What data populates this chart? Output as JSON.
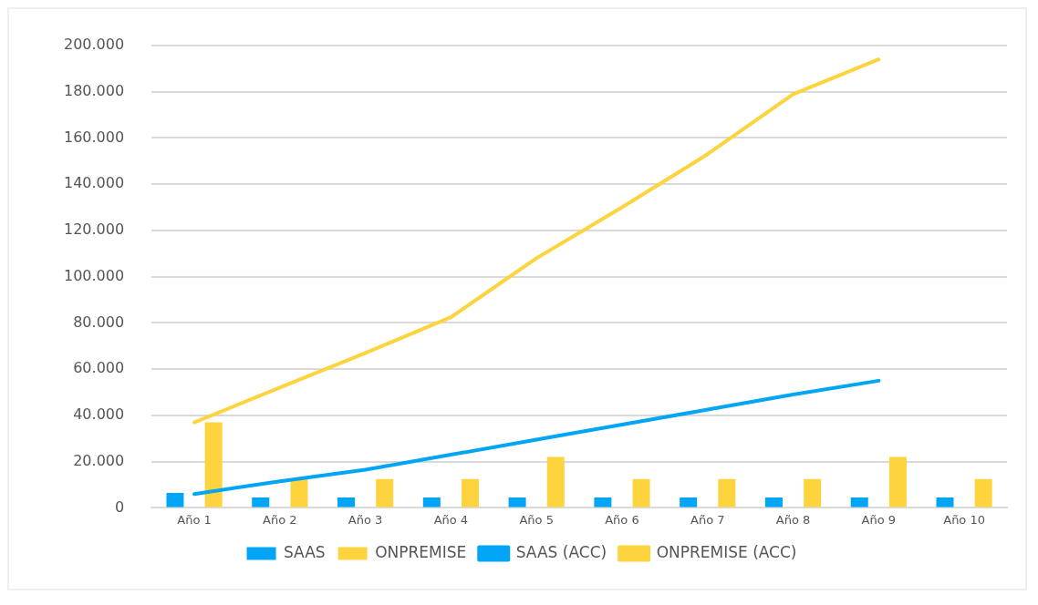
{
  "chart_data": {
    "type": "bar",
    "categories": [
      "Año 1",
      "Año 2",
      "Año 3",
      "Año 4",
      "Año 5",
      "Año 6",
      "Año 7",
      "Año 8",
      "Año 9",
      "Año 10"
    ],
    "series": [
      {
        "name": "SAAS",
        "color": "#00a6f5",
        "values": [
          6500,
          4500,
          4500,
          4500,
          4500,
          4500,
          4500,
          4500,
          4500,
          4500
        ]
      },
      {
        "name": "ONPREMISE",
        "color": "#fdd43e",
        "values": [
          37000,
          12500,
          12500,
          12500,
          22000,
          12500,
          12500,
          12500,
          22000,
          12500
        ]
      },
      {
        "name": "SAAS (ACC)",
        "type": "line",
        "color": "#00a6f5",
        "values": [
          6000,
          11500,
          16500,
          23000,
          29500,
          36000,
          42500,
          49000,
          55000,
          null
        ]
      },
      {
        "name": "ONPREMISE (ACC)",
        "type": "line",
        "color": "#fdd43e",
        "values": [
          37000,
          52000,
          67000,
          82500,
          108000,
          130000,
          153000,
          179000,
          194000,
          null
        ]
      }
    ],
    "ylim": [
      0,
      200000
    ],
    "yticks": [
      {
        "value": 0,
        "label": "0"
      },
      {
        "value": 20000,
        "label": "20.000"
      },
      {
        "value": 40000,
        "label": "40.000"
      },
      {
        "value": 60000,
        "label": "60.000"
      },
      {
        "value": 80000,
        "label": "80.000"
      },
      {
        "value": 100000,
        "label": "100.000"
      },
      {
        "value": 120000,
        "label": "120.000"
      },
      {
        "value": 140000,
        "label": "140.000"
      },
      {
        "value": 160000,
        "label": "160.000"
      },
      {
        "value": 180000,
        "label": "180.000"
      },
      {
        "value": 200000,
        "label": "200.000"
      }
    ],
    "grid": "y",
    "legend": "bottom",
    "marker": "none"
  }
}
